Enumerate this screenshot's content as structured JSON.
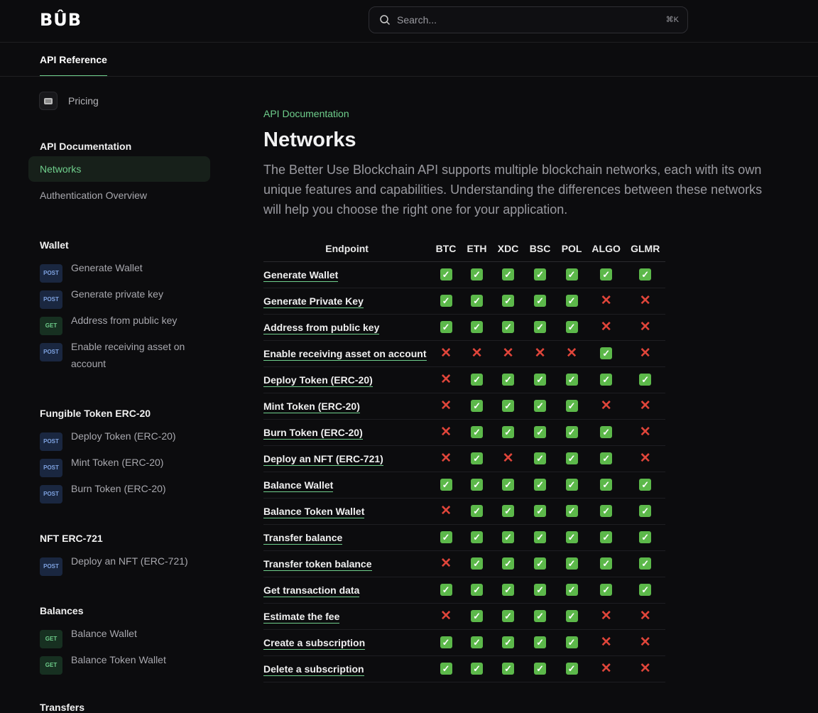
{
  "header": {
    "logo": "BÛB",
    "search_placeholder": "Search...",
    "shortcut": "⌘K"
  },
  "tabs": {
    "active": "API Reference"
  },
  "sidebar": {
    "pricing": "Pricing",
    "sections": [
      {
        "title": "API Documentation",
        "items": [
          {
            "label": "Networks",
            "active": true
          },
          {
            "label": "Authentication Overview"
          }
        ]
      },
      {
        "title": "Wallet",
        "items": [
          {
            "method": "POST",
            "label": "Generate Wallet"
          },
          {
            "method": "POST",
            "label": "Generate private key"
          },
          {
            "method": "GET",
            "label": "Address from public key"
          },
          {
            "method": "POST",
            "label": "Enable receiving asset on account"
          }
        ]
      },
      {
        "title": "Fungible Token ERC-20",
        "items": [
          {
            "method": "POST",
            "label": "Deploy Token (ERC-20)"
          },
          {
            "method": "POST",
            "label": "Mint Token (ERC-20)"
          },
          {
            "method": "POST",
            "label": "Burn Token (ERC-20)"
          }
        ]
      },
      {
        "title": "NFT ERC-721",
        "items": [
          {
            "method": "POST",
            "label": "Deploy an NFT (ERC-721)"
          }
        ]
      },
      {
        "title": "Balances",
        "items": [
          {
            "method": "GET",
            "label": "Balance Wallet"
          },
          {
            "method": "GET",
            "label": "Balance Token Wallet"
          }
        ]
      },
      {
        "title": "Transfers",
        "items": []
      }
    ]
  },
  "main": {
    "eyebrow": "API Documentation",
    "title": "Networks",
    "description": "The Better Use Blockchain API supports multiple blockchain networks, each with its own unique features and capabilities. Understanding the differences between these networks will help you choose the right one for your application.",
    "table": {
      "columns": [
        "Endpoint",
        "BTC",
        "ETH",
        "XDC",
        "BSC",
        "POL",
        "ALGO",
        "GLMR"
      ],
      "rows": [
        {
          "endpoint": "Generate Wallet",
          "support": [
            1,
            1,
            1,
            1,
            1,
            1,
            1
          ]
        },
        {
          "endpoint": "Generate Private Key",
          "support": [
            1,
            1,
            1,
            1,
            1,
            0,
            0
          ]
        },
        {
          "endpoint": "Address from public key",
          "support": [
            1,
            1,
            1,
            1,
            1,
            0,
            0
          ]
        },
        {
          "endpoint": "Enable receiving asset on account",
          "support": [
            0,
            0,
            0,
            0,
            0,
            1,
            0
          ]
        },
        {
          "endpoint": "Deploy Token (ERC-20)",
          "support": [
            0,
            1,
            1,
            1,
            1,
            1,
            1
          ]
        },
        {
          "endpoint": "Mint Token (ERC-20)",
          "support": [
            0,
            1,
            1,
            1,
            1,
            0,
            0
          ]
        },
        {
          "endpoint": "Burn Token (ERC-20)",
          "support": [
            0,
            1,
            1,
            1,
            1,
            1,
            0
          ]
        },
        {
          "endpoint": "Deploy an NFT (ERC-721)",
          "support": [
            0,
            1,
            0,
            1,
            1,
            1,
            0
          ]
        },
        {
          "endpoint": "Balance Wallet",
          "support": [
            1,
            1,
            1,
            1,
            1,
            1,
            1
          ]
        },
        {
          "endpoint": "Balance Token Wallet",
          "support": [
            0,
            1,
            1,
            1,
            1,
            1,
            1
          ]
        },
        {
          "endpoint": "Transfer balance",
          "support": [
            1,
            1,
            1,
            1,
            1,
            1,
            1
          ]
        },
        {
          "endpoint": "Transfer token balance",
          "support": [
            0,
            1,
            1,
            1,
            1,
            1,
            1
          ]
        },
        {
          "endpoint": "Get transaction data",
          "support": [
            1,
            1,
            1,
            1,
            1,
            1,
            1
          ]
        },
        {
          "endpoint": "Estimate the fee",
          "support": [
            0,
            1,
            1,
            1,
            1,
            0,
            0
          ]
        },
        {
          "endpoint": "Create a subscription",
          "support": [
            1,
            1,
            1,
            1,
            1,
            0,
            0
          ]
        },
        {
          "endpoint": "Delete a subscription",
          "support": [
            1,
            1,
            1,
            1,
            1,
            0,
            0
          ]
        }
      ],
      "yes_icon": "check-mark-button-icon",
      "no_icon": "cross-mark-icon"
    }
  },
  "colors": {
    "accent": "#6fcf8c",
    "check": "#5cb84a",
    "cross": "#e0453a",
    "background": "#0c0c0e"
  }
}
